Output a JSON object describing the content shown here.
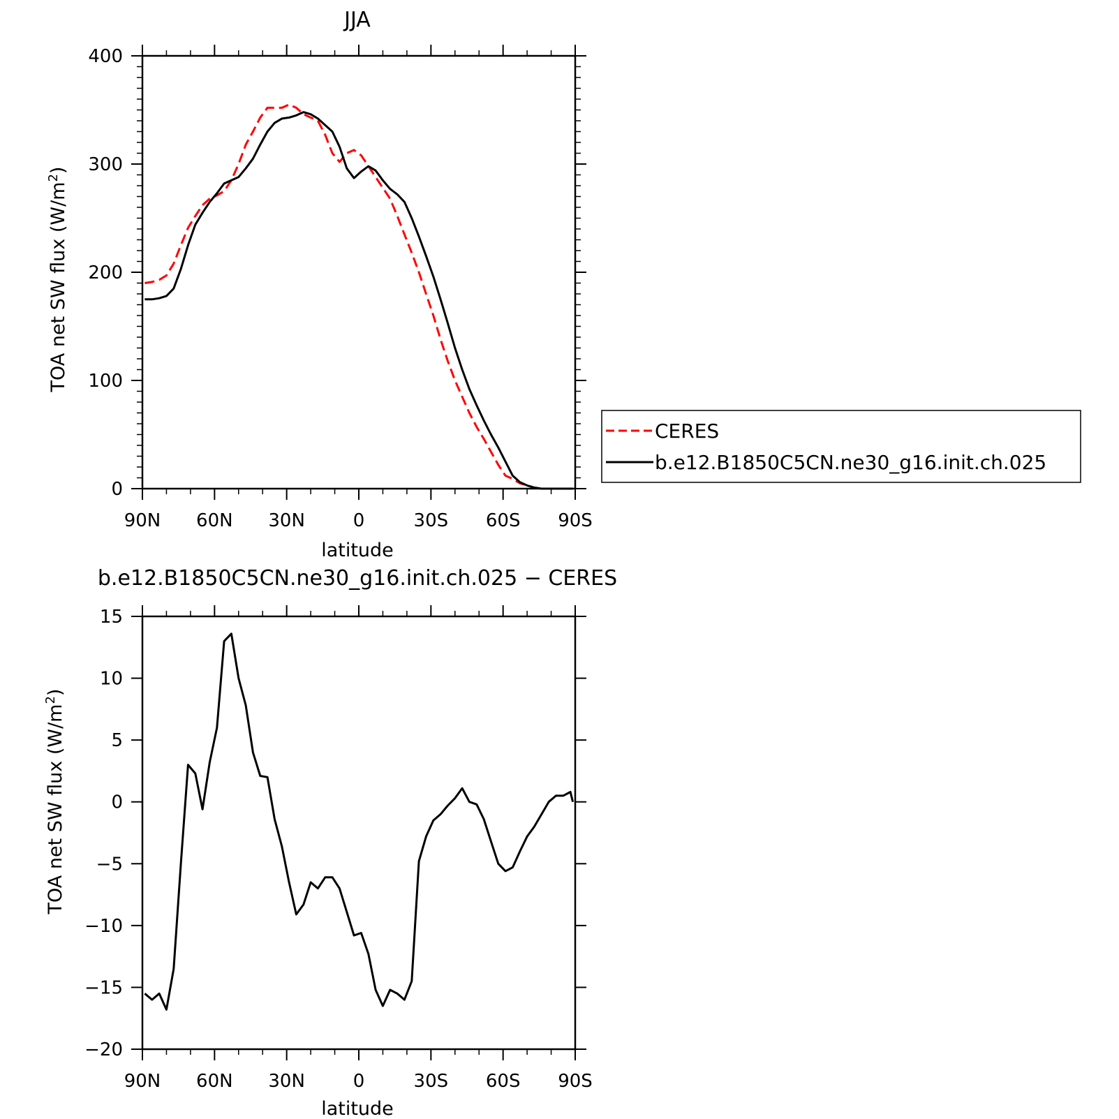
{
  "colors": {
    "ceres": "#ff0000",
    "model": "#000000"
  },
  "legend": {
    "items": [
      {
        "label": "CERES",
        "color": "#ff0000",
        "dash": "dashed"
      },
      {
        "label": "b.e12.B1850C5CN.ne30_g16.init.ch.025",
        "color": "#000000",
        "dash": "solid"
      }
    ]
  },
  "chart_data": [
    {
      "type": "line",
      "title": "JJA",
      "xlabel": "latitude",
      "ylabel": "TOA net SW flux (W/m²)",
      "ylabel_main": "TOA net SW flux (W/m",
      "ylabel_sup": "2",
      "ylabel_end": ")",
      "xlim": [
        90,
        -90
      ],
      "ylim": [
        0,
        400
      ],
      "xticks": [
        {
          "value": 90,
          "label": "90N"
        },
        {
          "value": 60,
          "label": "60N"
        },
        {
          "value": 30,
          "label": "30N"
        },
        {
          "value": 0,
          "label": "0"
        },
        {
          "value": -30,
          "label": "30S"
        },
        {
          "value": -60,
          "label": "60S"
        },
        {
          "value": -90,
          "label": "90S"
        }
      ],
      "yticks": [
        {
          "value": 0,
          "label": "0"
        },
        {
          "value": 100,
          "label": "100"
        },
        {
          "value": 200,
          "label": "200"
        },
        {
          "value": 300,
          "label": "300"
        },
        {
          "value": 400,
          "label": "400"
        }
      ],
      "x": [
        89,
        86,
        83,
        80,
        77,
        74,
        71,
        68,
        65,
        62,
        59,
        56,
        53,
        50,
        47,
        44,
        41,
        38,
        35,
        32,
        29,
        26,
        23,
        20,
        17,
        14,
        11,
        8,
        5,
        2,
        -1,
        -4,
        -7,
        -10,
        -13,
        -16,
        -19,
        -22,
        -25,
        -28,
        -31,
        -34,
        -37,
        -40,
        -43,
        -46,
        -49,
        -52,
        -55,
        -58,
        -61,
        -64,
        -67,
        -70,
        -73,
        -76,
        -79,
        -82,
        -85,
        -88,
        -89
      ],
      "series": [
        {
          "name": "CERES",
          "values": [
            190,
            191,
            193,
            197,
            208,
            225,
            241,
            252,
            262,
            268,
            271,
            275,
            285,
            300,
            318,
            330,
            343,
            352,
            352,
            352,
            355,
            352,
            346,
            343,
            340,
            327,
            310,
            302,
            310,
            313,
            308,
            298,
            288,
            278,
            268,
            252,
            235,
            218,
            200,
            180,
            160,
            138,
            118,
            100,
            85,
            70,
            57,
            46,
            34,
            22,
            12,
            9,
            5,
            3,
            1,
            0,
            0,
            0,
            0,
            0,
            0
          ]
        },
        {
          "name": "b.e12.B1850C5CN.ne30_g16.init.ch.025",
          "values": [
            175,
            175,
            176,
            178,
            185,
            203,
            225,
            244,
            255,
            265,
            273,
            282,
            285,
            288,
            296,
            305,
            318,
            330,
            338,
            342,
            343,
            345,
            348,
            346,
            342,
            336,
            330,
            316,
            296,
            287,
            293,
            298,
            294,
            285,
            277,
            272,
            265,
            250,
            233,
            215,
            196,
            175,
            153,
            130,
            110,
            92,
            77,
            63,
            50,
            38,
            25,
            12,
            6,
            3,
            1,
            0,
            0,
            0,
            0,
            0,
            0
          ]
        }
      ]
    },
    {
      "type": "line",
      "title": "b.e12.B1850C5CN.ne30_g16.init.ch.025 − CERES",
      "xlabel": "latitude",
      "ylabel": "TOA net SW flux (W/m²)",
      "ylabel_main": "TOA net SW flux (W/m",
      "ylabel_sup": "2",
      "ylabel_end": ")",
      "xlim": [
        90,
        -90
      ],
      "ylim": [
        -20,
        15
      ],
      "xticks": [
        {
          "value": 90,
          "label": "90N"
        },
        {
          "value": 60,
          "label": "60N"
        },
        {
          "value": 30,
          "label": "30N"
        },
        {
          "value": 0,
          "label": "0"
        },
        {
          "value": -30,
          "label": "30S"
        },
        {
          "value": -60,
          "label": "60S"
        },
        {
          "value": -90,
          "label": "90S"
        }
      ],
      "yticks": [
        {
          "value": -20,
          "label": "−20"
        },
        {
          "value": -15,
          "label": "−15"
        },
        {
          "value": -10,
          "label": "−10"
        },
        {
          "value": -5,
          "label": "−5"
        },
        {
          "value": 0,
          "label": "0"
        },
        {
          "value": 5,
          "label": "5"
        },
        {
          "value": 10,
          "label": "10"
        },
        {
          "value": 15,
          "label": "15"
        }
      ],
      "x": [
        89,
        86,
        83,
        80,
        77,
        74,
        71,
        68,
        65,
        62,
        59,
        56,
        53,
        50,
        47,
        44,
        41,
        38,
        35,
        32,
        29,
        26,
        23,
        20,
        17,
        14,
        11,
        8,
        5,
        2,
        -1,
        -4,
        -7,
        -10,
        -13,
        -16,
        -19,
        -22,
        -25,
        -28,
        -31,
        -34,
        -37,
        -40,
        -43,
        -46,
        -49,
        -52,
        -55,
        -58,
        -61,
        -64,
        -67,
        -70,
        -73,
        -76,
        -79,
        -82,
        -85,
        -88,
        -89
      ],
      "series": [
        {
          "name": "b.e12.B1850C5CN.ne30_g16.init.ch.025",
          "values": [
            -15.5,
            -16,
            -15.5,
            -16.8,
            -13.5,
            -5,
            3,
            2.3,
            -0.6,
            3.2,
            6,
            13,
            13.6,
            10,
            7.8,
            4,
            2.1,
            2,
            -1.4,
            -3.6,
            -6.5,
            -9.1,
            -8.3,
            -6.5,
            -7,
            -6.1,
            -6.1,
            -7,
            -8.9,
            -10.8,
            -10.6,
            -12.3,
            -15.2,
            -16.5,
            -15.2,
            -15.5,
            -16,
            -14.5,
            -4.8,
            -2.8,
            -1.5,
            -1,
            -0.3,
            0.3,
            1.1,
            0,
            -0.2,
            -1.4,
            -3.2,
            -5,
            -5.6,
            -5.3,
            -4,
            -2.8,
            -2,
            -1,
            0,
            0.5,
            0.5,
            0.8,
            0
          ]
        }
      ]
    }
  ]
}
